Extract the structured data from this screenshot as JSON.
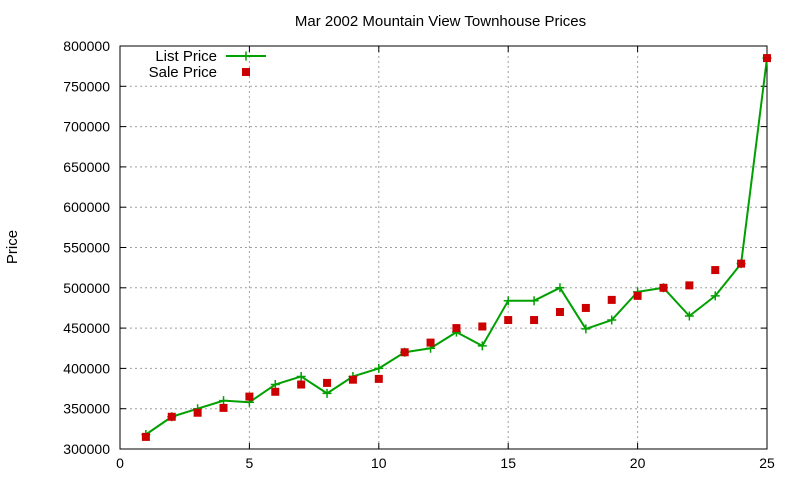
{
  "chart_data": {
    "type": "line",
    "title": "Mar 2002 Mountain View Townhouse Prices",
    "xlabel": "",
    "ylabel": "Price",
    "xlim": [
      0,
      25
    ],
    "ylim": [
      300000,
      800000
    ],
    "x_ticks": [
      0,
      5,
      10,
      15,
      20,
      25
    ],
    "y_ticks": [
      300000,
      350000,
      400000,
      450000,
      500000,
      550000,
      600000,
      650000,
      700000,
      750000,
      800000
    ],
    "grid": true,
    "legend_position": "top-left",
    "series": [
      {
        "name": "List Price",
        "style": "line+cross",
        "color": "#00a000",
        "x": [
          1,
          2,
          3,
          4,
          5,
          6,
          7,
          8,
          9,
          10,
          11,
          12,
          13,
          14,
          15,
          16,
          17,
          18,
          19,
          20,
          21,
          22,
          23,
          24,
          25
        ],
        "y": [
          318000,
          340000,
          350000,
          360000,
          358000,
          380000,
          390000,
          369000,
          390000,
          400000,
          420000,
          425000,
          445000,
          428000,
          484000,
          484000,
          500000,
          449000,
          460000,
          495000,
          500000,
          465000,
          490000,
          530000,
          785000
        ]
      },
      {
        "name": "Sale Price",
        "style": "square",
        "color": "#cc0000",
        "x": [
          1,
          2,
          3,
          4,
          5,
          6,
          7,
          8,
          9,
          10,
          11,
          12,
          13,
          14,
          15,
          16,
          17,
          18,
          19,
          20,
          21,
          22,
          23,
          24,
          25
        ],
        "y": [
          315000,
          340000,
          345000,
          351000,
          365000,
          371000,
          380000,
          382000,
          386000,
          387000,
          420000,
          432000,
          450000,
          452000,
          460000,
          460000,
          470000,
          475000,
          485000,
          490000,
          500000,
          503000,
          522000,
          530000,
          785000
        ]
      }
    ]
  }
}
